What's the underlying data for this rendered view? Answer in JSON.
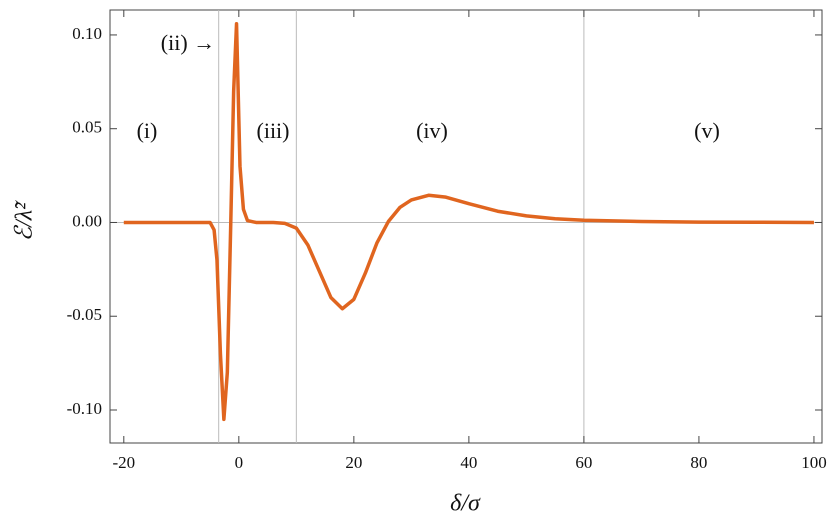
{
  "chart_data": {
    "type": "line",
    "xlabel": "δ/σ",
    "ylabel": "ℰ/λ̃²",
    "annotations": [
      "(i)",
      "(ii) →",
      "(iii)",
      "(iv)",
      "(v)"
    ],
    "x": [
      -20,
      -10,
      -5,
      -4.3,
      -3.8,
      -3.2,
      -2.6,
      -2.0,
      -1.4,
      -0.9,
      -0.4,
      0.2,
      0.8,
      1.5,
      3,
      6,
      8,
      10,
      12,
      14,
      16,
      18,
      20,
      22,
      24,
      26,
      28,
      30,
      33,
      36,
      40,
      45,
      50,
      55,
      60,
      70,
      80,
      90,
      100
    ],
    "values": [
      0,
      0,
      0,
      -0.004,
      -0.02,
      -0.07,
      -0.105,
      -0.08,
      0.0,
      0.07,
      0.106,
      0.03,
      0.007,
      0.001,
      0,
      0,
      -0.0005,
      -0.003,
      -0.012,
      -0.026,
      -0.04,
      -0.046,
      -0.041,
      -0.027,
      -0.011,
      0.0005,
      0.008,
      0.012,
      0.0145,
      0.0135,
      0.01,
      0.006,
      0.0035,
      0.002,
      0.0012,
      0.0005,
      0.0002,
      0.0001,
      0
    ],
    "color": "#e0651f",
    "xlim": [
      -22.4,
      101.4
    ],
    "ylim": [
      -0.1176,
      0.1133
    ],
    "xticks": [
      -20,
      0,
      20,
      40,
      60,
      80,
      100
    ],
    "yticks": [
      {
        "value": -0.1,
        "label": "-0.10"
      },
      {
        "value": -0.05,
        "label": "-0.05"
      },
      {
        "value": 0,
        "label": "0.00"
      },
      {
        "value": 0.05,
        "label": "0.05"
      },
      {
        "value": 0.1,
        "label": "0.10"
      }
    ],
    "vlines": [
      -3.5,
      10,
      60
    ],
    "hlines": [
      0
    ]
  }
}
